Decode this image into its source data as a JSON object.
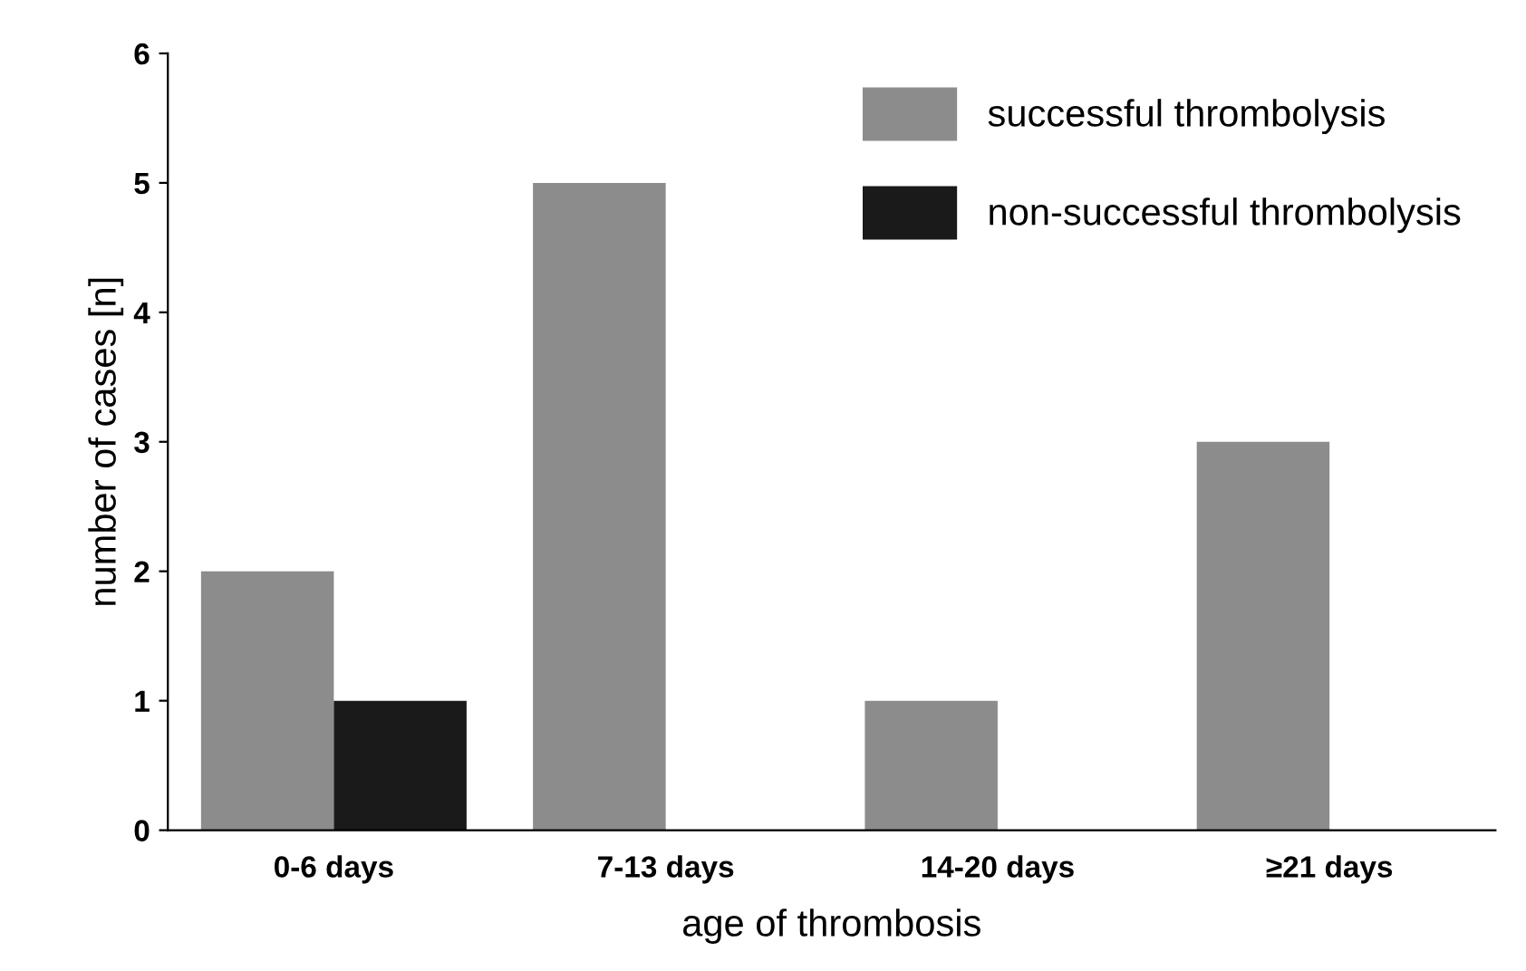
{
  "chart_data": {
    "type": "bar",
    "xlabel": "age of thrombosis",
    "ylabel": "number of cases [n]",
    "categories": [
      "0-6 days",
      "7-13 days",
      "14-20 days",
      "≥21 days"
    ],
    "series": [
      {
        "name": "successful thrombolysis",
        "color": "#8c8c8c",
        "values": [
          2,
          5,
          1,
          3
        ]
      },
      {
        "name": "non-successful thrombolysis",
        "color": "#1a1a1a",
        "values": [
          1,
          0,
          0,
          0
        ]
      }
    ],
    "ylim": [
      0,
      6
    ],
    "yticks": [
      0,
      1,
      2,
      3,
      4,
      5,
      6
    ],
    "grid": false,
    "legend": "top right"
  }
}
